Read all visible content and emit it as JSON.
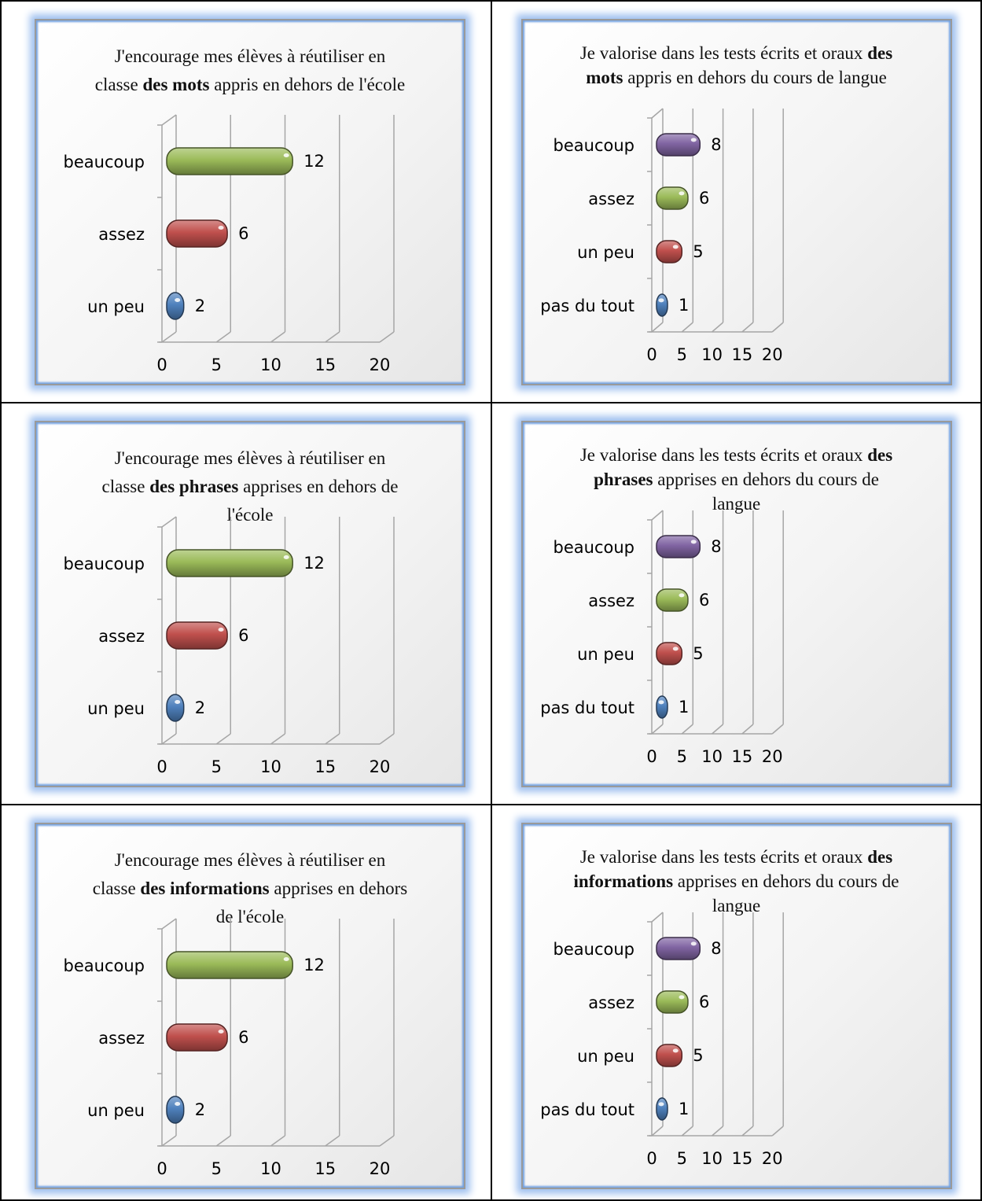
{
  "chart_data": [
    {
      "type": "bar",
      "title": {
        "pre": "J'encourage mes élèves à réutiliser en classe ",
        "bold": "des mots",
        "post": " appris en dehors de l'école"
      },
      "categories": [
        "beaucoup",
        "assez",
        "un peu"
      ],
      "values": [
        12,
        6,
        2
      ],
      "colors": [
        "#9bbb59",
        "#c0504d",
        "#4f81bd"
      ],
      "xticks": [
        "0",
        "5",
        "10",
        "15",
        "20"
      ],
      "xlim": [
        0,
        20
      ]
    },
    {
      "type": "bar",
      "title": {
        "pre": "Je valorise dans les tests écrits et oraux ",
        "bold": "des mots",
        "post": " appris en dehors du cours de langue"
      },
      "categories": [
        "beaucoup",
        "assez",
        "un peu",
        "pas du tout"
      ],
      "values": [
        8,
        6,
        5,
        1
      ],
      "colors": [
        "#8064a2",
        "#9bbb59",
        "#c0504d",
        "#4f81bd"
      ],
      "xticks": [
        "0",
        "5",
        "10",
        "15",
        "20"
      ],
      "xlim": [
        0,
        20
      ]
    },
    {
      "type": "bar",
      "title": {
        "pre": "J'encourage mes élèves à réutiliser en classe ",
        "bold": "des phrases",
        "post": " apprises en dehors de l'école"
      },
      "categories": [
        "beaucoup",
        "assez",
        "un peu"
      ],
      "values": [
        12,
        6,
        2
      ],
      "colors": [
        "#9bbb59",
        "#c0504d",
        "#4f81bd"
      ],
      "xticks": [
        "0",
        "5",
        "10",
        "15",
        "20"
      ],
      "xlim": [
        0,
        20
      ]
    },
    {
      "type": "bar",
      "title": {
        "pre": "Je valorise dans les tests écrits et oraux ",
        "bold": "des phrases",
        "post": " apprises en dehors du cours de langue"
      },
      "categories": [
        "beaucoup",
        "assez",
        "un peu",
        "pas du tout"
      ],
      "values": [
        8,
        6,
        5,
        1
      ],
      "colors": [
        "#8064a2",
        "#9bbb59",
        "#c0504d",
        "#4f81bd"
      ],
      "xticks": [
        "0",
        "5",
        "10",
        "15",
        "20"
      ],
      "xlim": [
        0,
        20
      ]
    },
    {
      "type": "bar",
      "title": {
        "pre": "J'encourage mes élèves à réutiliser en classe ",
        "bold": "des informations",
        "post": " apprises en dehors de l'école"
      },
      "categories": [
        "beaucoup",
        "assez",
        "un peu"
      ],
      "values": [
        12,
        6,
        2
      ],
      "colors": [
        "#9bbb59",
        "#c0504d",
        "#4f81bd"
      ],
      "xticks": [
        "0",
        "5",
        "10",
        "15",
        "20"
      ],
      "xlim": [
        0,
        20
      ]
    },
    {
      "type": "bar",
      "title": {
        "pre": "Je valorise dans les tests écrits et oraux ",
        "bold": "des informations",
        "post": " apprises en dehors du cours de langue"
      },
      "categories": [
        "beaucoup",
        "assez",
        "un peu",
        "pas du tout"
      ],
      "values": [
        8,
        6,
        5,
        1
      ],
      "colors": [
        "#8064a2",
        "#9bbb59",
        "#c0504d",
        "#4f81bd"
      ],
      "xticks": [
        "0",
        "5",
        "10",
        "15",
        "20"
      ],
      "xlim": [
        0,
        20
      ]
    }
  ]
}
